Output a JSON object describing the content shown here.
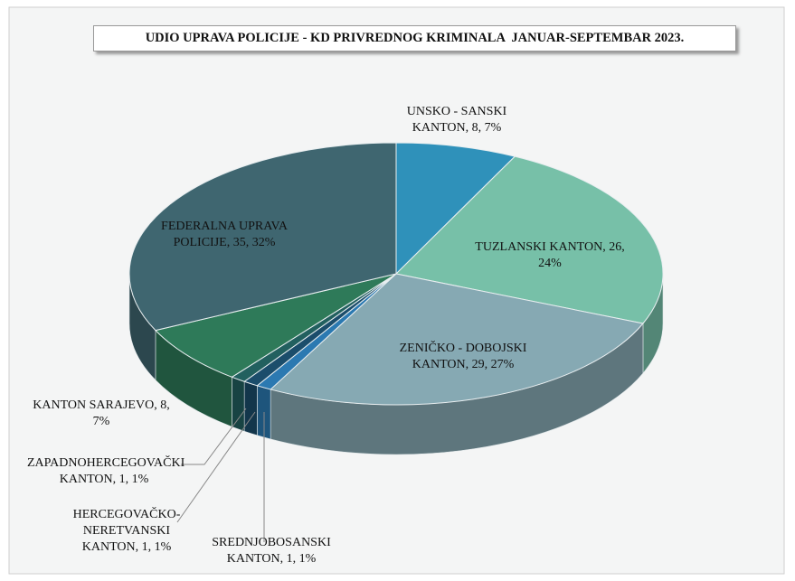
{
  "chart_data": {
    "type": "pie",
    "title": "UDIO UPRAVA POLICIJE - KD PRIVREDNOG KRIMINALA  JANUAR-SEPTEMBAR 2023.",
    "values": [
      8,
      26,
      29,
      1,
      1,
      1,
      8,
      35
    ],
    "value_labels": [
      "UNSKO - SANSKI KANTON, 8, 7%",
      "TUZLANSKI KANTON, 26, 24%",
      "ZENIČKO - DOBOJSKI KANTON, 29, 27%",
      "SREDNJOBOSANSKI KANTON, 1, 1%",
      "HERCEGOVAČKO-NERETVANSKI KANTON, 1, 1%",
      "ZAPADNOHERCEGOVAČKI KANTON, 1, 1%",
      "KANTON SARAJEVO, 8, 7%",
      "FEDERALNA UPRAVA POLICIJE, 35, 32%"
    ],
    "colors": [
      "#2f91ba",
      "#77c0a8",
      "#86a9b3",
      "#2b79b1",
      "#1b4d6b",
      "#22605f",
      "#2e7a59",
      "#3f6670"
    ]
  }
}
